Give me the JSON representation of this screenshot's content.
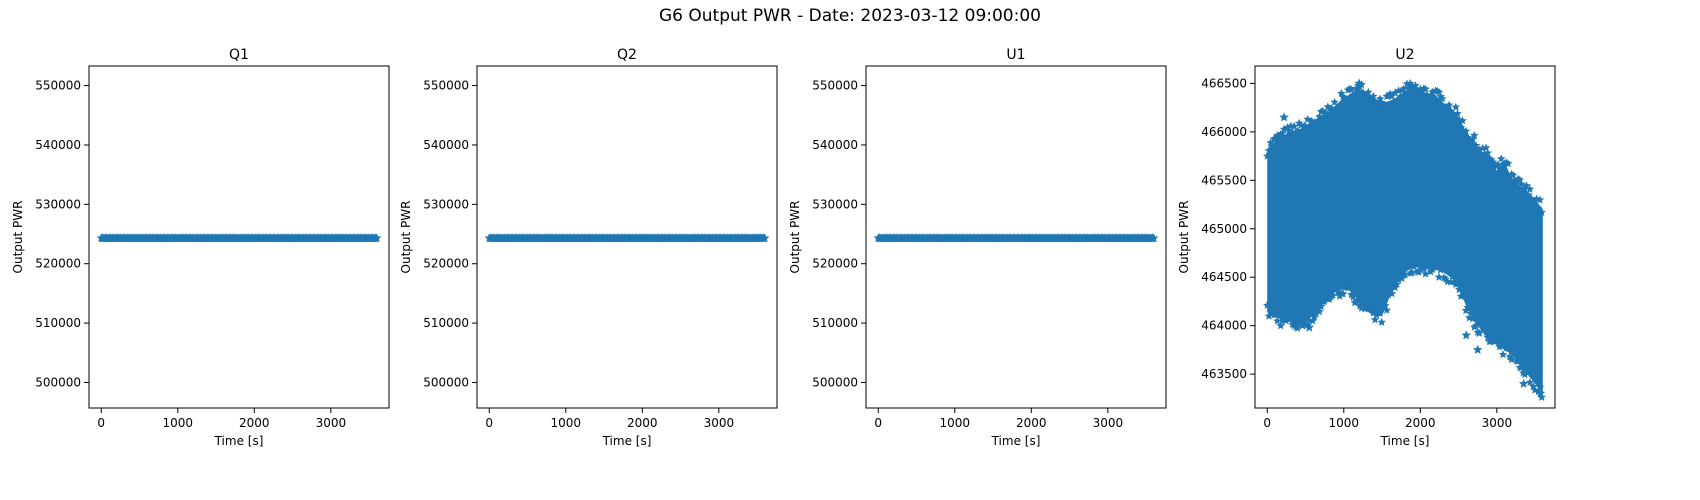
{
  "figure": {
    "suptitle": "G6 Output PWR - Date: 2023-03-12 09:00:00",
    "marker_color": "#1f77b4",
    "marker": "star"
  },
  "chart_data": [
    {
      "type": "scatter",
      "title": "Q1",
      "xlabel": "Time [s]",
      "ylabel": "Output PWR",
      "xlim": [
        -160,
        3760
      ],
      "ylim": [
        495700,
        553300
      ],
      "xticks": [
        0,
        1000,
        2000,
        3000
      ],
      "yticks": [
        500000,
        510000,
        520000,
        530000,
        540000,
        550000
      ],
      "grid": false,
      "series": [
        {
          "x_range": [
            0,
            3600
          ],
          "y_constant": 524300
        }
      ]
    },
    {
      "type": "scatter",
      "title": "Q2",
      "xlabel": "Time [s]",
      "ylabel": "Output PWR",
      "xlim": [
        -160,
        3760
      ],
      "ylim": [
        495700,
        553300
      ],
      "xticks": [
        0,
        1000,
        2000,
        3000
      ],
      "yticks": [
        500000,
        510000,
        520000,
        530000,
        540000,
        550000
      ],
      "grid": false,
      "series": [
        {
          "x_range": [
            0,
            3600
          ],
          "y_constant": 524300
        }
      ]
    },
    {
      "type": "scatter",
      "title": "U1",
      "xlabel": "Time [s]",
      "ylabel": "Output PWR",
      "xlim": [
        -160,
        3760
      ],
      "ylim": [
        495700,
        553300
      ],
      "xticks": [
        0,
        1000,
        2000,
        3000
      ],
      "yticks": [
        500000,
        510000,
        520000,
        530000,
        540000,
        550000
      ],
      "grid": false,
      "series": [
        {
          "x_range": [
            0,
            3600
          ],
          "y_constant": 524300
        }
      ]
    },
    {
      "type": "scatter",
      "title": "U2",
      "xlabel": "Time [s]",
      "ylabel": "Output PWR",
      "xlim": [
        -160,
        3760
      ],
      "ylim": [
        463150,
        466680
      ],
      "xticks": [
        0,
        1000,
        2000,
        3000
      ],
      "yticks": [
        463500,
        464000,
        464500,
        465000,
        465500,
        466000,
        466500
      ],
      "grid": false,
      "series": [
        {
          "envelope": {
            "x": [
              0,
              100,
              200,
              300,
              400,
              500,
              600,
              700,
              800,
              900,
              1000,
              1100,
              1200,
              1300,
              1400,
              1500,
              1600,
              1700,
              1800,
              1900,
              2000,
              2100,
              2200,
              2300,
              2400,
              2500,
              2600,
              2700,
              2800,
              2900,
              3000,
              3100,
              3200,
              3300,
              3400,
              3500,
              3600
            ],
            "upper": [
              465820,
              465900,
              465960,
              466000,
              466020,
              466060,
              466100,
              466150,
              466200,
              466280,
              466350,
              466400,
              466450,
              466400,
              466350,
              466300,
              466320,
              466360,
              466420,
              466450,
              466420,
              466400,
              466380,
              466300,
              466250,
              466150,
              466000,
              465900,
              465800,
              465750,
              465600,
              465700,
              465500,
              465450,
              465380,
              465300,
              465200
            ],
            "lower": [
              464150,
              464100,
              464050,
              464050,
              464000,
              464050,
              464100,
              464200,
              464300,
              464350,
              464380,
              464350,
              464250,
              464150,
              464100,
              464100,
              464300,
              464450,
              464550,
              464600,
              464600,
              464600,
              464580,
              464550,
              464500,
              464400,
              464200,
              464050,
              463950,
              463850,
              463800,
              463750,
              463700,
              463600,
              463500,
              463400,
              463300
            ]
          },
          "outliers": [
            [
              220,
              466150
            ],
            [
              150,
              465950
            ],
            [
              1200,
              466500
            ],
            [
              1850,
              466450
            ],
            [
              2850,
              465700
            ],
            [
              3350,
              463400
            ],
            [
              3570,
              463300
            ],
            [
              2600,
              463900
            ],
            [
              2750,
              463750
            ],
            [
              550,
              463980
            ]
          ]
        }
      ]
    }
  ]
}
